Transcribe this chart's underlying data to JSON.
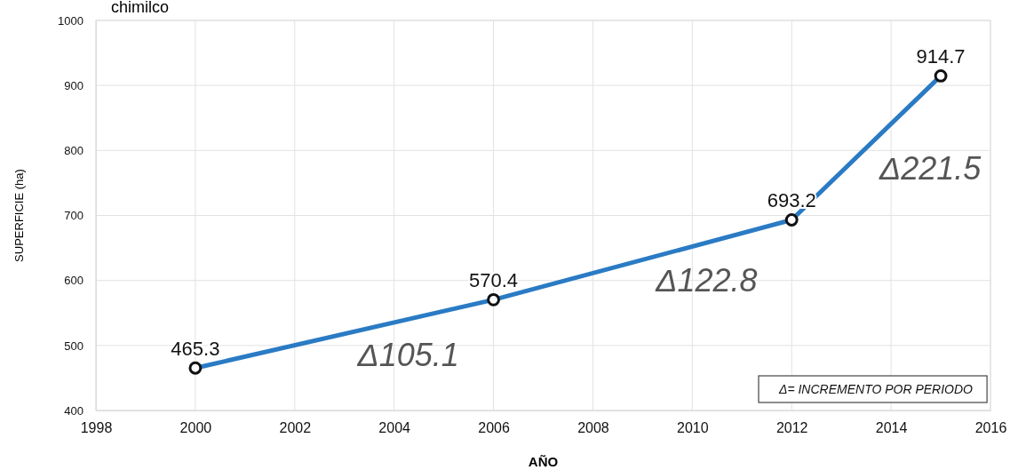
{
  "chart_data": {
    "type": "line",
    "title": "chimilco",
    "xlabel": "AÑO",
    "ylabel": "SUPERFICIE (ha)",
    "x": [
      2000,
      2006,
      2012,
      2015
    ],
    "series": [
      {
        "color": "#2a7bc4",
        "values": [
          465.3,
          570.4,
          693.2,
          914.7
        ]
      }
    ],
    "xlim": [
      1998,
      2016
    ],
    "xticks": [
      1998,
      2000,
      2002,
      2004,
      2006,
      2008,
      2010,
      2012,
      2014,
      2016
    ],
    "ylim": [
      400,
      1000
    ],
    "yticks": [
      400,
      500,
      600,
      700,
      800,
      900,
      1000
    ],
    "grid": true,
    "marker": "circle",
    "line_style": "solid",
    "data_labels": true,
    "annotations": [
      "Δ105.1",
      "Δ122.8",
      "Δ221.5",
      "Δ= INCREMENTO POR PERIODO"
    ]
  }
}
